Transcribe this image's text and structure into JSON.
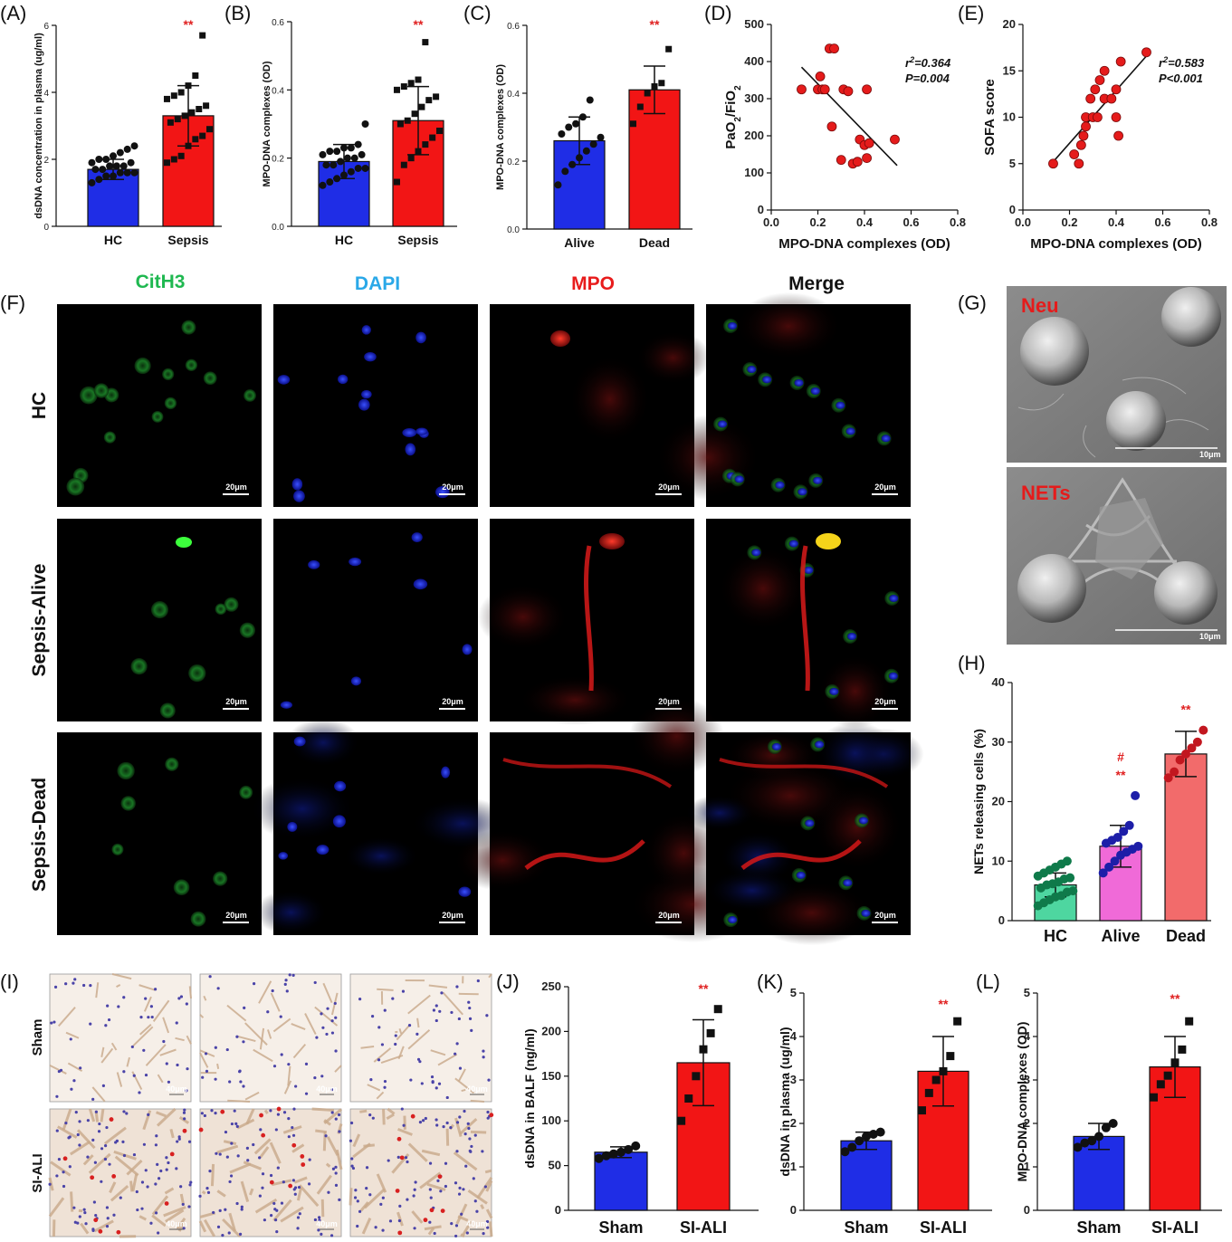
{
  "panel_labels": {
    "A": "(A)",
    "B": "(B)",
    "C": "(C)",
    "D": "(D)",
    "E": "(E)",
    "F": "(F)",
    "G": "(G)",
    "H": "(H)",
    "I": "(I)",
    "J": "(J)",
    "K": "(K)",
    "L": "(L)"
  },
  "colors": {
    "blue": "#1f2de6",
    "red": "#f21515",
    "green": "#4ed6a0",
    "pink": "#f06ad8",
    "salmon": "#f26b6b",
    "sig": "#e02020"
  },
  "chart_data": [
    {
      "id": "A",
      "type": "bar",
      "categories": [
        "HC",
        "Sepsis"
      ],
      "values": [
        1.7,
        3.3
      ],
      "errors": [
        0.3,
        0.9
      ],
      "ylabel": "dsDNA concentration in plasma (ug/ml)",
      "ylim": [
        0,
        6
      ],
      "yticks": [
        "0",
        "2",
        "4",
        "6"
      ],
      "sig": "**",
      "bar_colors": [
        "blue",
        "red"
      ],
      "points": [
        [
          1.3,
          1.4,
          1.5,
          1.5,
          1.6,
          1.6,
          1.6,
          1.7,
          1.7,
          1.8,
          1.8,
          1.8,
          1.9,
          1.9,
          2.0,
          2.0,
          2.1,
          2.2,
          2.3,
          2.4
        ],
        [
          1.9,
          2.0,
          2.1,
          2.4,
          2.6,
          2.7,
          2.9,
          3.1,
          3.2,
          3.3,
          3.4,
          3.5,
          3.6,
          3.8,
          3.9,
          4.0,
          4.2,
          4.5,
          5.7
        ]
      ]
    },
    {
      "id": "B",
      "type": "bar",
      "categories": [
        "HC",
        "Sepsis"
      ],
      "values": [
        0.19,
        0.31
      ],
      "errors": [
        0.05,
        0.1
      ],
      "ylabel": "MPO-DNA complexes (OD)",
      "ylim": [
        0,
        0.6
      ],
      "yticks": [
        "0.0",
        "0.2",
        "0.4",
        "0.6"
      ],
      "sig": "**",
      "bar_colors": [
        "blue",
        "red"
      ],
      "points": [
        [
          0.12,
          0.13,
          0.14,
          0.15,
          0.16,
          0.17,
          0.17,
          0.18,
          0.18,
          0.19,
          0.2,
          0.2,
          0.21,
          0.21,
          0.22,
          0.22,
          0.23,
          0.23,
          0.24,
          0.3
        ],
        [
          0.13,
          0.18,
          0.2,
          0.22,
          0.24,
          0.26,
          0.28,
          0.3,
          0.31,
          0.33,
          0.35,
          0.37,
          0.38,
          0.4,
          0.41,
          0.42,
          0.43,
          0.54
        ]
      ]
    },
    {
      "id": "C",
      "type": "bar",
      "categories": [
        "Alive",
        "Dead"
      ],
      "values": [
        0.26,
        0.41
      ],
      "errors": [
        0.07,
        0.07
      ],
      "ylabel": "MPO-DNA complexes (OD)",
      "ylim": [
        0,
        0.6
      ],
      "yticks": [
        "0.0",
        "0.2",
        "0.4",
        "0.6"
      ],
      "sig": "**",
      "bar_colors": [
        "blue",
        "red"
      ],
      "points": [
        [
          0.13,
          0.17,
          0.19,
          0.21,
          0.23,
          0.25,
          0.27,
          0.28,
          0.3,
          0.31,
          0.33,
          0.38
        ],
        [
          0.31,
          0.36,
          0.4,
          0.42,
          0.43,
          0.53
        ]
      ]
    },
    {
      "id": "D",
      "type": "scatter",
      "xlabel": "MPO-DNA complexes (OD)",
      "ylabel": "PaO2/FiO2",
      "xlim": [
        0,
        0.8
      ],
      "ylim": [
        0,
        500
      ],
      "xticks": [
        "0.0",
        "0.2",
        "0.4",
        "0.6",
        "0.8"
      ],
      "yticks": [
        "0",
        "100",
        "200",
        "300",
        "400",
        "500"
      ],
      "stat_r": "r",
      "stat_r_value": "=0.364",
      "stat_p": "P=0.004",
      "points": [
        [
          0.13,
          325
        ],
        [
          0.2,
          325
        ],
        [
          0.21,
          360
        ],
        [
          0.22,
          325
        ],
        [
          0.23,
          325
        ],
        [
          0.25,
          435
        ],
        [
          0.27,
          435
        ],
        [
          0.31,
          325
        ],
        [
          0.33,
          320
        ],
        [
          0.26,
          225
        ],
        [
          0.3,
          135
        ],
        [
          0.35,
          125
        ],
        [
          0.37,
          130
        ],
        [
          0.38,
          190
        ],
        [
          0.4,
          175
        ],
        [
          0.42,
          180
        ],
        [
          0.41,
          140
        ],
        [
          0.41,
          325
        ],
        [
          0.53,
          190
        ]
      ],
      "trend": [
        [
          0.13,
          385
        ],
        [
          0.54,
          120
        ]
      ]
    },
    {
      "id": "E",
      "type": "scatter",
      "xlabel": "MPO-DNA complexes (OD)",
      "ylabel": "SOFA score",
      "xlim": [
        0,
        0.8
      ],
      "ylim": [
        0,
        20
      ],
      "xticks": [
        "0.0",
        "0.2",
        "0.4",
        "0.6",
        "0.8"
      ],
      "yticks": [
        "0",
        "5",
        "10",
        "15",
        "20"
      ],
      "stat_r": "r",
      "stat_r_value": "=0.583",
      "stat_p": "P<0.001",
      "points": [
        [
          0.13,
          5
        ],
        [
          0.22,
          6
        ],
        [
          0.24,
          5
        ],
        [
          0.25,
          7
        ],
        [
          0.26,
          8
        ],
        [
          0.27,
          9
        ],
        [
          0.27,
          10
        ],
        [
          0.29,
          12
        ],
        [
          0.3,
          10
        ],
        [
          0.31,
          13
        ],
        [
          0.32,
          10
        ],
        [
          0.33,
          14
        ],
        [
          0.35,
          12
        ],
        [
          0.35,
          15
        ],
        [
          0.38,
          12
        ],
        [
          0.4,
          10
        ],
        [
          0.41,
          8
        ],
        [
          0.4,
          13
        ],
        [
          0.42,
          16
        ],
        [
          0.53,
          17
        ]
      ],
      "trend": [
        [
          0.13,
          5.2
        ],
        [
          0.53,
          16.6
        ]
      ]
    },
    {
      "id": "H",
      "type": "bar",
      "categories": [
        "HC",
        "Alive",
        "Dead"
      ],
      "values": [
        6,
        12.5,
        28
      ],
      "errors": [
        2,
        3.5,
        3.8
      ],
      "ylabel": "NETs releasing cells (%)",
      "ylim": [
        0,
        40
      ],
      "yticks": [
        "0",
        "10",
        "20",
        "30",
        "40"
      ],
      "sig": [
        "",
        "**",
        "**"
      ],
      "sig2": [
        "",
        "#",
        ""
      ],
      "bar_colors": [
        "green",
        "pink",
        "salmon"
      ],
      "points": [
        [
          2.5,
          3,
          3.5,
          4,
          4.2,
          4.8,
          5,
          5.5,
          6,
          6.2,
          6.5,
          7,
          7.2,
          7.5,
          8,
          8.5,
          9,
          9.5,
          10
        ],
        [
          8,
          9,
          10,
          11,
          11.5,
          12,
          12.5,
          13,
          13.5,
          14,
          15,
          16,
          21
        ],
        [
          24,
          25,
          27,
          28,
          29,
          30,
          32
        ]
      ]
    },
    {
      "id": "J",
      "type": "bar",
      "categories": [
        "Sham",
        "SI-ALI"
      ],
      "values": [
        65,
        165
      ],
      "errors": [
        6,
        48
      ],
      "ylabel": "dsDNA in BALF (ng/ml)",
      "ylim": [
        0,
        250
      ],
      "yticks": [
        "0",
        "50",
        "100",
        "150",
        "200",
        "250"
      ],
      "sig": "**",
      "bar_colors": [
        "blue",
        "red"
      ],
      "points": [
        [
          58,
          61,
          63,
          65,
          68,
          72
        ],
        [
          100,
          125,
          150,
          180,
          198,
          225
        ]
      ]
    },
    {
      "id": "K",
      "type": "bar",
      "categories": [
        "Sham",
        "SI-ALI"
      ],
      "values": [
        1.6,
        3.2
      ],
      "errors": [
        0.2,
        0.8
      ],
      "ylabel": "dsDNA in plasma (ug/ml)",
      "ylim": [
        0,
        5
      ],
      "yticks": [
        "0",
        "1",
        "2",
        "3",
        "4",
        "5"
      ],
      "sig": "**",
      "bar_colors": [
        "blue",
        "red"
      ],
      "points": [
        [
          1.35,
          1.45,
          1.6,
          1.7,
          1.75,
          1.8
        ],
        [
          2.3,
          2.7,
          3.0,
          3.2,
          3.55,
          4.35
        ]
      ]
    },
    {
      "id": "L",
      "type": "bar",
      "categories": [
        "Sham",
        "SI-ALI"
      ],
      "values": [
        1.7,
        3.3
      ],
      "errors": [
        0.3,
        0.7
      ],
      "ylabel": "MPO-DNA complexes (OD)",
      "ylim": [
        0,
        5
      ],
      "yticks": [
        "0",
        "1",
        "2",
        "3",
        "4",
        "5"
      ],
      "sig": "**",
      "bar_colors": [
        "blue",
        "red"
      ],
      "points": [
        [
          1.45,
          1.55,
          1.6,
          1.7,
          1.9,
          2.0
        ],
        [
          2.6,
          2.9,
          3.1,
          3.4,
          3.7,
          4.35
        ]
      ]
    }
  ],
  "panel_f": {
    "channels": [
      "CitH3",
      "DAPI",
      "MPO",
      "Merge"
    ],
    "channel_colors": [
      "#1fb850",
      "#2aa8e8",
      "#e81c1c",
      "#111111"
    ],
    "rows": [
      "HC",
      "Sepsis-Alive",
      "Sepsis-Dead"
    ],
    "scale_bar": "20μm"
  },
  "panel_g": {
    "labels": [
      "Neu",
      "NETs"
    ],
    "scale_bar": "10μm"
  },
  "panel_i": {
    "rows": [
      "Sham",
      "SI-ALI"
    ],
    "scale_bar": "40μm"
  }
}
